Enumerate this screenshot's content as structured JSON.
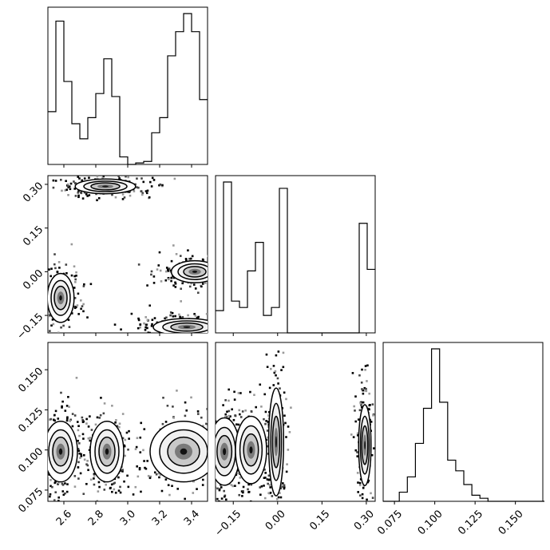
{
  "chart_data": {
    "type": "corner",
    "title": "",
    "parameters": [
      {
        "label": "",
        "range": [
          2.5,
          3.5
        ],
        "ticks": [
          "2.6",
          "2.8",
          "3.0",
          "3.2",
          "3.4"
        ],
        "tick_values": [
          2.6,
          2.8,
          3.0,
          3.2,
          3.4
        ]
      },
      {
        "label": "",
        "range": [
          -0.21,
          0.33
        ],
        "ticks": [
          "−0.15",
          "0.00",
          "0.15",
          "0.30"
        ],
        "tick_values": [
          -0.15,
          0.0,
          0.15,
          0.3
        ]
      },
      {
        "label": "",
        "range": [
          0.068,
          0.167
        ],
        "ticks": [
          "0.075",
          "0.100",
          "0.125",
          "0.150"
        ],
        "tick_values": [
          0.075,
          0.1,
          0.125,
          0.15
        ]
      }
    ],
    "histograms": [
      {
        "param": 0,
        "bin_edges": [
          2.5,
          2.525,
          2.55,
          2.575,
          2.6,
          2.625,
          2.65,
          2.675,
          2.7,
          2.725,
          2.75,
          2.775,
          2.8,
          2.825,
          2.85,
          2.875,
          2.9,
          2.925,
          2.95,
          2.975,
          3.0,
          3.025,
          3.05,
          3.075,
          3.1,
          3.125,
          3.15,
          3.175,
          3.2,
          3.225,
          3.25,
          3.275,
          3.3,
          3.325,
          3.35,
          3.375,
          3.4,
          3.425,
          3.45,
          3.475,
          3.5
        ],
        "counts": [
          0.35,
          0.35,
          0.95,
          0.95,
          0.55,
          0.55,
          0.27,
          0.27,
          0.17,
          0.17,
          0.31,
          0.31,
          0.47,
          0.47,
          0.7,
          0.7,
          0.45,
          0.45,
          0.05,
          0.05,
          0.0,
          0.0,
          0.01,
          0.01,
          0.02,
          0.02,
          0.21,
          0.21,
          0.31,
          0.31,
          0.72,
          0.72,
          0.88,
          0.88,
          1.0,
          1.0,
          0.88,
          0.88,
          0.43,
          0.43
        ]
      },
      {
        "param": 1,
        "bin_edges": [
          -0.21,
          -0.183,
          -0.156,
          -0.129,
          -0.102,
          -0.075,
          -0.048,
          -0.021,
          0.006,
          0.033,
          0.06,
          0.087,
          0.114,
          0.141,
          0.168,
          0.195,
          0.222,
          0.249,
          0.276,
          0.303,
          0.33
        ],
        "counts": [
          0.14,
          0.95,
          0.2,
          0.16,
          0.39,
          0.57,
          0.11,
          0.16,
          0.91,
          0.0,
          0.0,
          0.0,
          0.0,
          0.0,
          0.0,
          0.0,
          0.0,
          0.0,
          0.69,
          0.4
        ]
      },
      {
        "param": 2,
        "bin_edges": [
          0.068,
          0.073,
          0.078,
          0.083,
          0.088,
          0.093,
          0.098,
          0.103,
          0.108,
          0.113,
          0.118,
          0.123,
          0.128,
          0.133,
          0.138,
          0.143,
          0.148,
          0.153,
          0.158,
          0.163,
          0.168
        ],
        "counts": [
          0.0,
          0.0,
          0.06,
          0.16,
          0.38,
          0.61,
          1.0,
          0.65,
          0.27,
          0.2,
          0.11,
          0.04,
          0.02,
          0.0,
          0.0,
          0.0,
          0.0,
          0.0,
          0.0,
          0.0
        ]
      }
    ],
    "pairs": [
      {
        "x_param": 0,
        "y_param": 1,
        "modes": [
          {
            "x": 2.86,
            "y": 0.293,
            "sx": 0.09,
            "sy": 0.012,
            "w": 1.0
          },
          {
            "x": 2.58,
            "y": -0.09,
            "sx": 0.04,
            "sy": 0.04,
            "w": 0.9
          },
          {
            "x": 3.37,
            "y": -0.19,
            "sx": 0.1,
            "sy": 0.014,
            "w": 1.0
          },
          {
            "x": 3.42,
            "y": 0.0,
            "sx": 0.07,
            "sy": 0.018,
            "w": 0.9
          }
        ]
      },
      {
        "x_param": 0,
        "y_param": 2,
        "modes": [
          {
            "x": 2.58,
            "y": 0.099,
            "sx": 0.05,
            "sy": 0.009,
            "w": 0.9
          },
          {
            "x": 2.87,
            "y": 0.099,
            "sx": 0.05,
            "sy": 0.009,
            "w": 0.8
          },
          {
            "x": 3.35,
            "y": 0.099,
            "sx": 0.1,
            "sy": 0.009,
            "w": 1.0
          }
        ]
      },
      {
        "x_param": 1,
        "y_param": 2,
        "modes": [
          {
            "x": -0.18,
            "y": 0.099,
            "sx": 0.025,
            "sy": 0.01,
            "w": 0.9
          },
          {
            "x": -0.09,
            "y": 0.1,
            "sx": 0.025,
            "sy": 0.01,
            "w": 0.7
          },
          {
            "x": -0.005,
            "y": 0.105,
            "sx": 0.012,
            "sy": 0.016,
            "w": 0.9
          },
          {
            "x": 0.295,
            "y": 0.103,
            "sx": 0.01,
            "sy": 0.012,
            "w": 0.8
          }
        ]
      }
    ]
  }
}
